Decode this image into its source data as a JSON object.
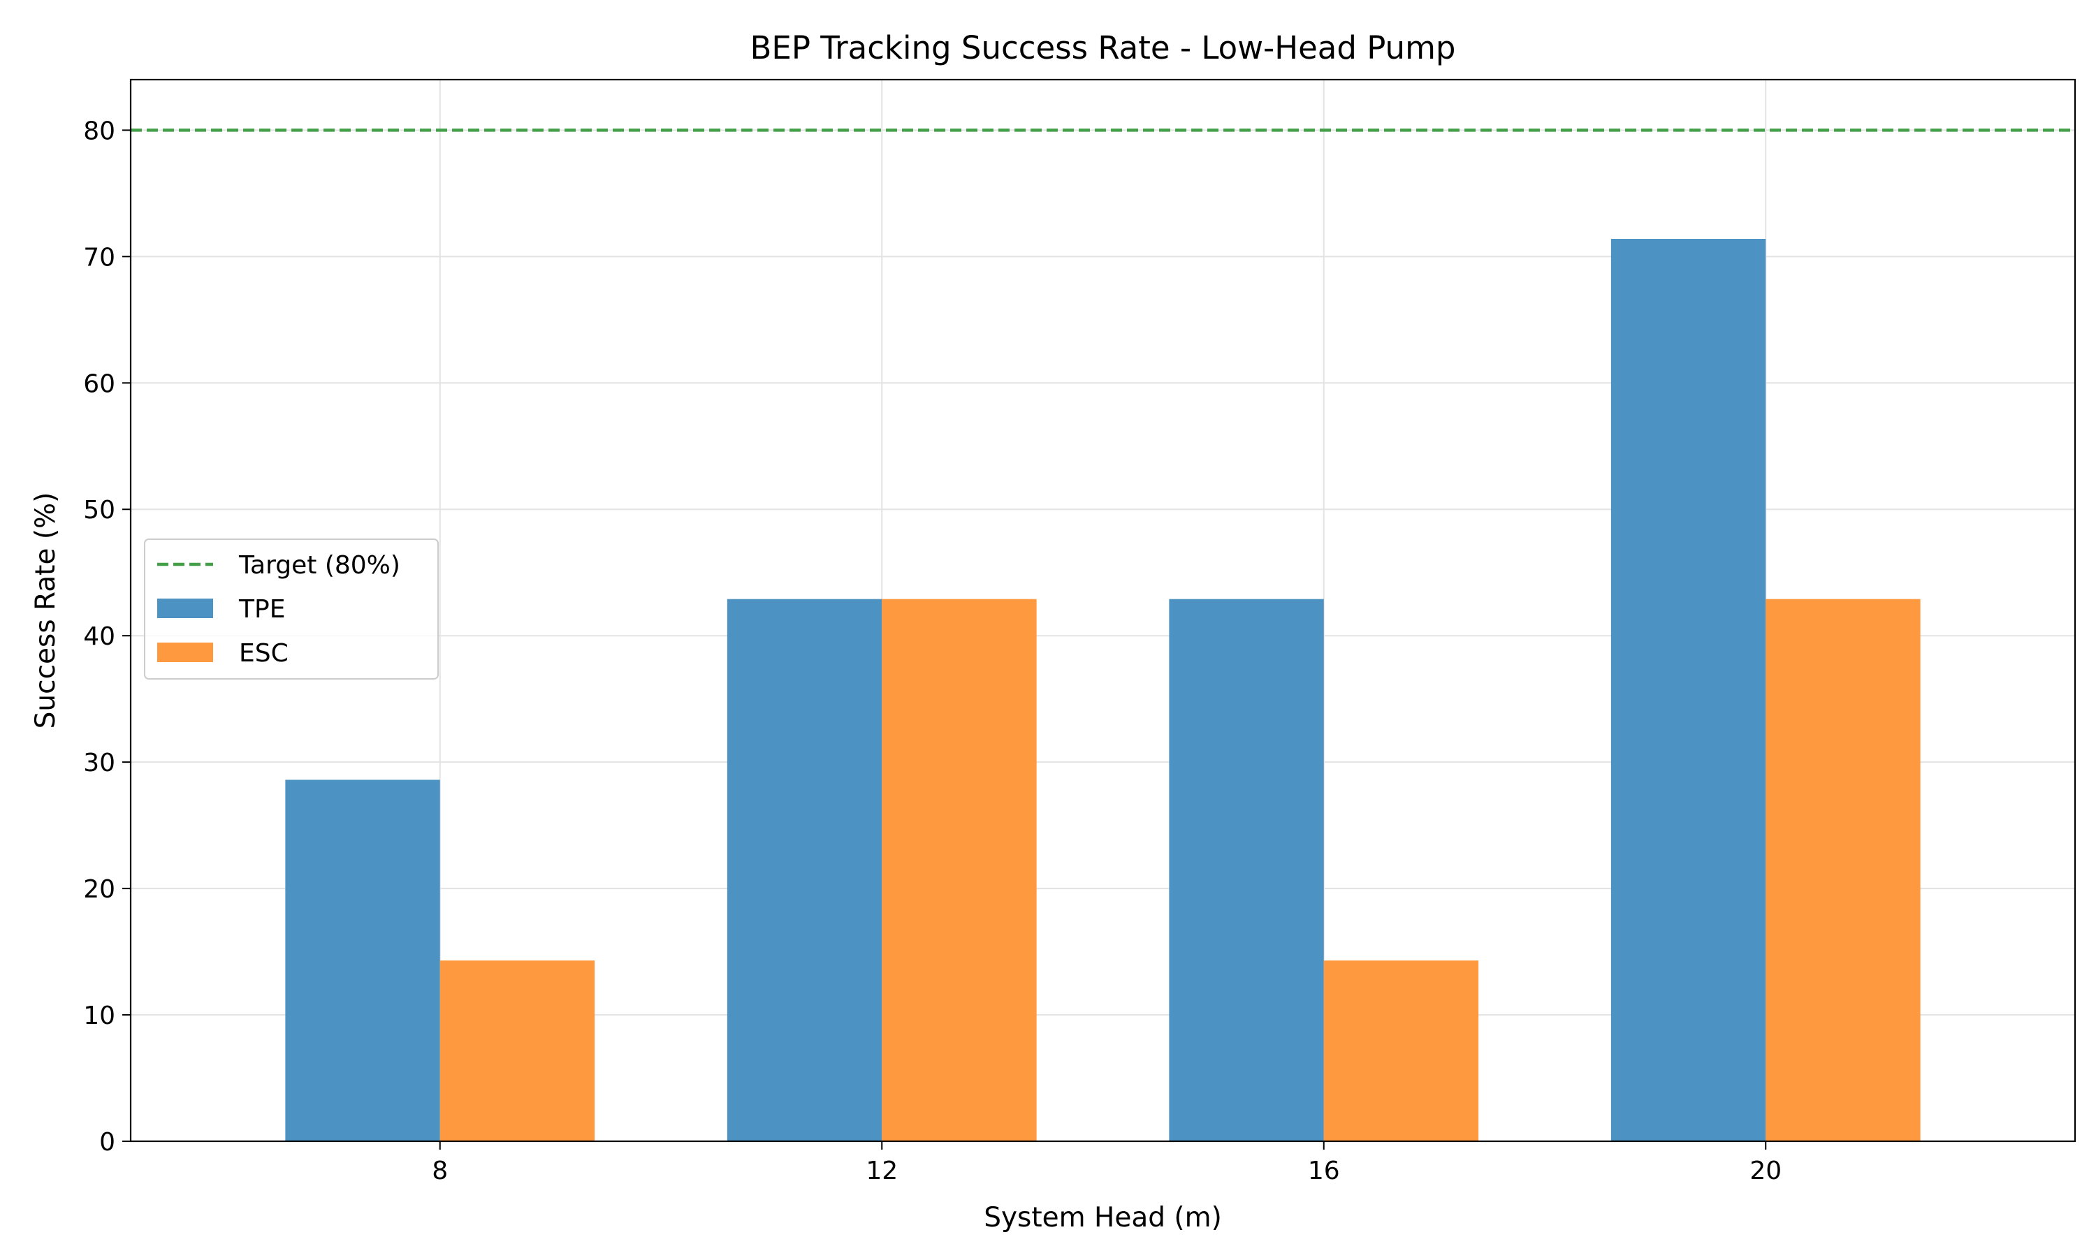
{
  "chart_data": {
    "type": "bar",
    "title": "BEP Tracking Success Rate - Low-Head Pump",
    "xlabel": "System Head (m)",
    "ylabel": "Success Rate (%)",
    "categories": [
      "8",
      "12",
      "16",
      "20"
    ],
    "series": [
      {
        "name": "TPE",
        "values": [
          28.6,
          42.9,
          42.9,
          71.4
        ],
        "color": "#4c92c3"
      },
      {
        "name": "ESC",
        "values": [
          14.3,
          42.9,
          14.3,
          42.9
        ],
        "color": "#ff993f"
      }
    ],
    "reference_line": {
      "label": "Target (80%)",
      "value": 80,
      "color": "#43a048",
      "style": "dashed"
    },
    "ylim": [
      0,
      84
    ],
    "yticks": [
      0,
      10,
      20,
      30,
      40,
      50,
      60,
      70,
      80
    ],
    "grid": true,
    "legend_position": "center-left"
  }
}
